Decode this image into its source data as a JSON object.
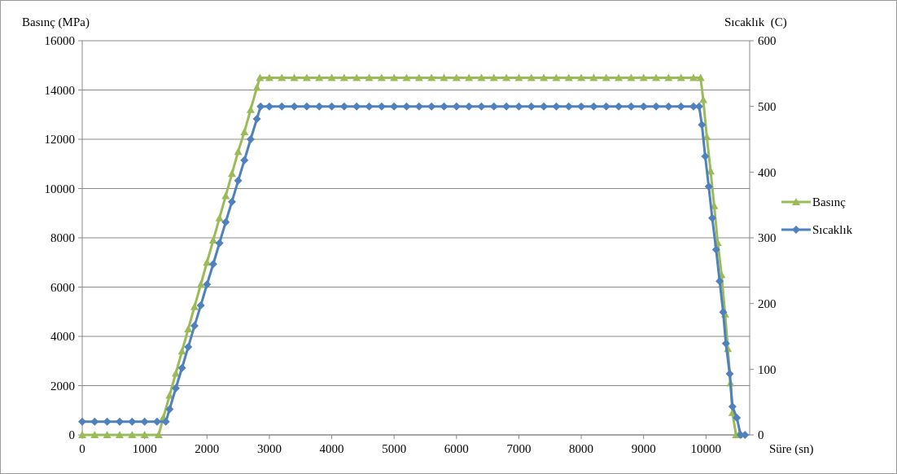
{
  "chart_data": {
    "type": "line",
    "xlabel": "Süre (sn)",
    "ylabel": "Basınç (MPa)",
    "y2label": "Sıcaklık  (C)",
    "xlim": [
      0,
      10700
    ],
    "xticks": [
      0,
      1000,
      2000,
      3000,
      4000,
      5000,
      6000,
      7000,
      8000,
      9000,
      10000
    ],
    "ylim": [
      0,
      16000
    ],
    "yticks": [
      0,
      2000,
      4000,
      6000,
      8000,
      10000,
      12000,
      14000,
      16000
    ],
    "y2lim": [
      0,
      600
    ],
    "y2ticks": [
      0,
      100,
      200,
      300,
      400,
      500,
      600
    ],
    "grid": "y",
    "legend": "right",
    "series": [
      {
        "name": "Basınç",
        "color": "#9bbb59",
        "marker": "triangle",
        "x": [
          0,
          200,
          400,
          600,
          800,
          1000,
          1225,
          1300,
          1400,
          1500,
          1600,
          1700,
          1800,
          1900,
          2000,
          2100,
          2200,
          2300,
          2400,
          2500,
          2600,
          2700,
          2800,
          2850,
          3000,
          3200,
          3400,
          3600,
          3800,
          4000,
          4200,
          4400,
          4600,
          4800,
          5000,
          5200,
          5400,
          5600,
          5800,
          6000,
          6200,
          6400,
          6600,
          6800,
          7000,
          7200,
          7400,
          7600,
          7800,
          8000,
          8200,
          8400,
          8600,
          8800,
          9000,
          9200,
          9400,
          9600,
          9800,
          9913,
          9956,
          10013,
          10074,
          10131,
          10188,
          10249,
          10306,
          10350,
          10393,
          10424,
          10481,
          10524
        ],
        "values": [
          0,
          0,
          0,
          0,
          0,
          0,
          0,
          700,
          1600,
          2500,
          3400,
          4300,
          5200,
          6100,
          7000,
          7900,
          8800,
          9700,
          10600,
          11500,
          12300,
          13200,
          14100,
          14500,
          14500,
          14500,
          14500,
          14500,
          14500,
          14500,
          14500,
          14500,
          14500,
          14500,
          14500,
          14500,
          14500,
          14500,
          14500,
          14500,
          14500,
          14500,
          14500,
          14500,
          14500,
          14500,
          14500,
          14500,
          14500,
          14500,
          14500,
          14500,
          14500,
          14500,
          14500,
          14500,
          14500,
          14500,
          14500,
          14500,
          13600,
          12100,
          10700,
          9300,
          7800,
          6500,
          4900,
          3500,
          2100,
          900,
          0,
          0
        ]
      },
      {
        "name": "Sıcaklık",
        "color": "#4f81bd",
        "marker": "diamond",
        "axis": "y2",
        "x": [
          0,
          200,
          400,
          600,
          800,
          1000,
          1200,
          1340,
          1400,
          1500,
          1600,
          1700,
          1800,
          1900,
          2000,
          2100,
          2200,
          2300,
          2400,
          2500,
          2600,
          2700,
          2800,
          2860,
          3000,
          3200,
          3400,
          3600,
          3800,
          4000,
          4200,
          4400,
          4600,
          4800,
          5000,
          5200,
          5400,
          5600,
          5800,
          6000,
          6200,
          6400,
          6600,
          6800,
          7000,
          7200,
          7400,
          7600,
          7800,
          8000,
          8200,
          8400,
          8600,
          8800,
          9000,
          9200,
          9400,
          9600,
          9800,
          9890,
          9934,
          9987,
          10044,
          10100,
          10162,
          10219,
          10275,
          10319,
          10380,
          10424,
          10494,
          10555,
          10625
        ],
        "values": [
          20,
          20,
          20,
          20,
          20,
          20,
          20,
          20,
          39,
          71,
          102,
          134,
          166,
          197,
          229,
          260,
          292,
          324,
          355,
          387,
          418,
          450,
          481,
          500,
          500,
          500,
          500,
          500,
          500,
          500,
          500,
          500,
          500,
          500,
          500,
          500,
          500,
          500,
          500,
          500,
          500,
          500,
          500,
          500,
          500,
          500,
          500,
          500,
          500,
          500,
          500,
          500,
          500,
          500,
          500,
          500,
          500,
          500,
          500,
          500,
          472,
          424,
          378,
          330,
          282,
          234,
          187,
          139,
          93,
          43,
          26,
          0,
          0
        ]
      }
    ]
  }
}
